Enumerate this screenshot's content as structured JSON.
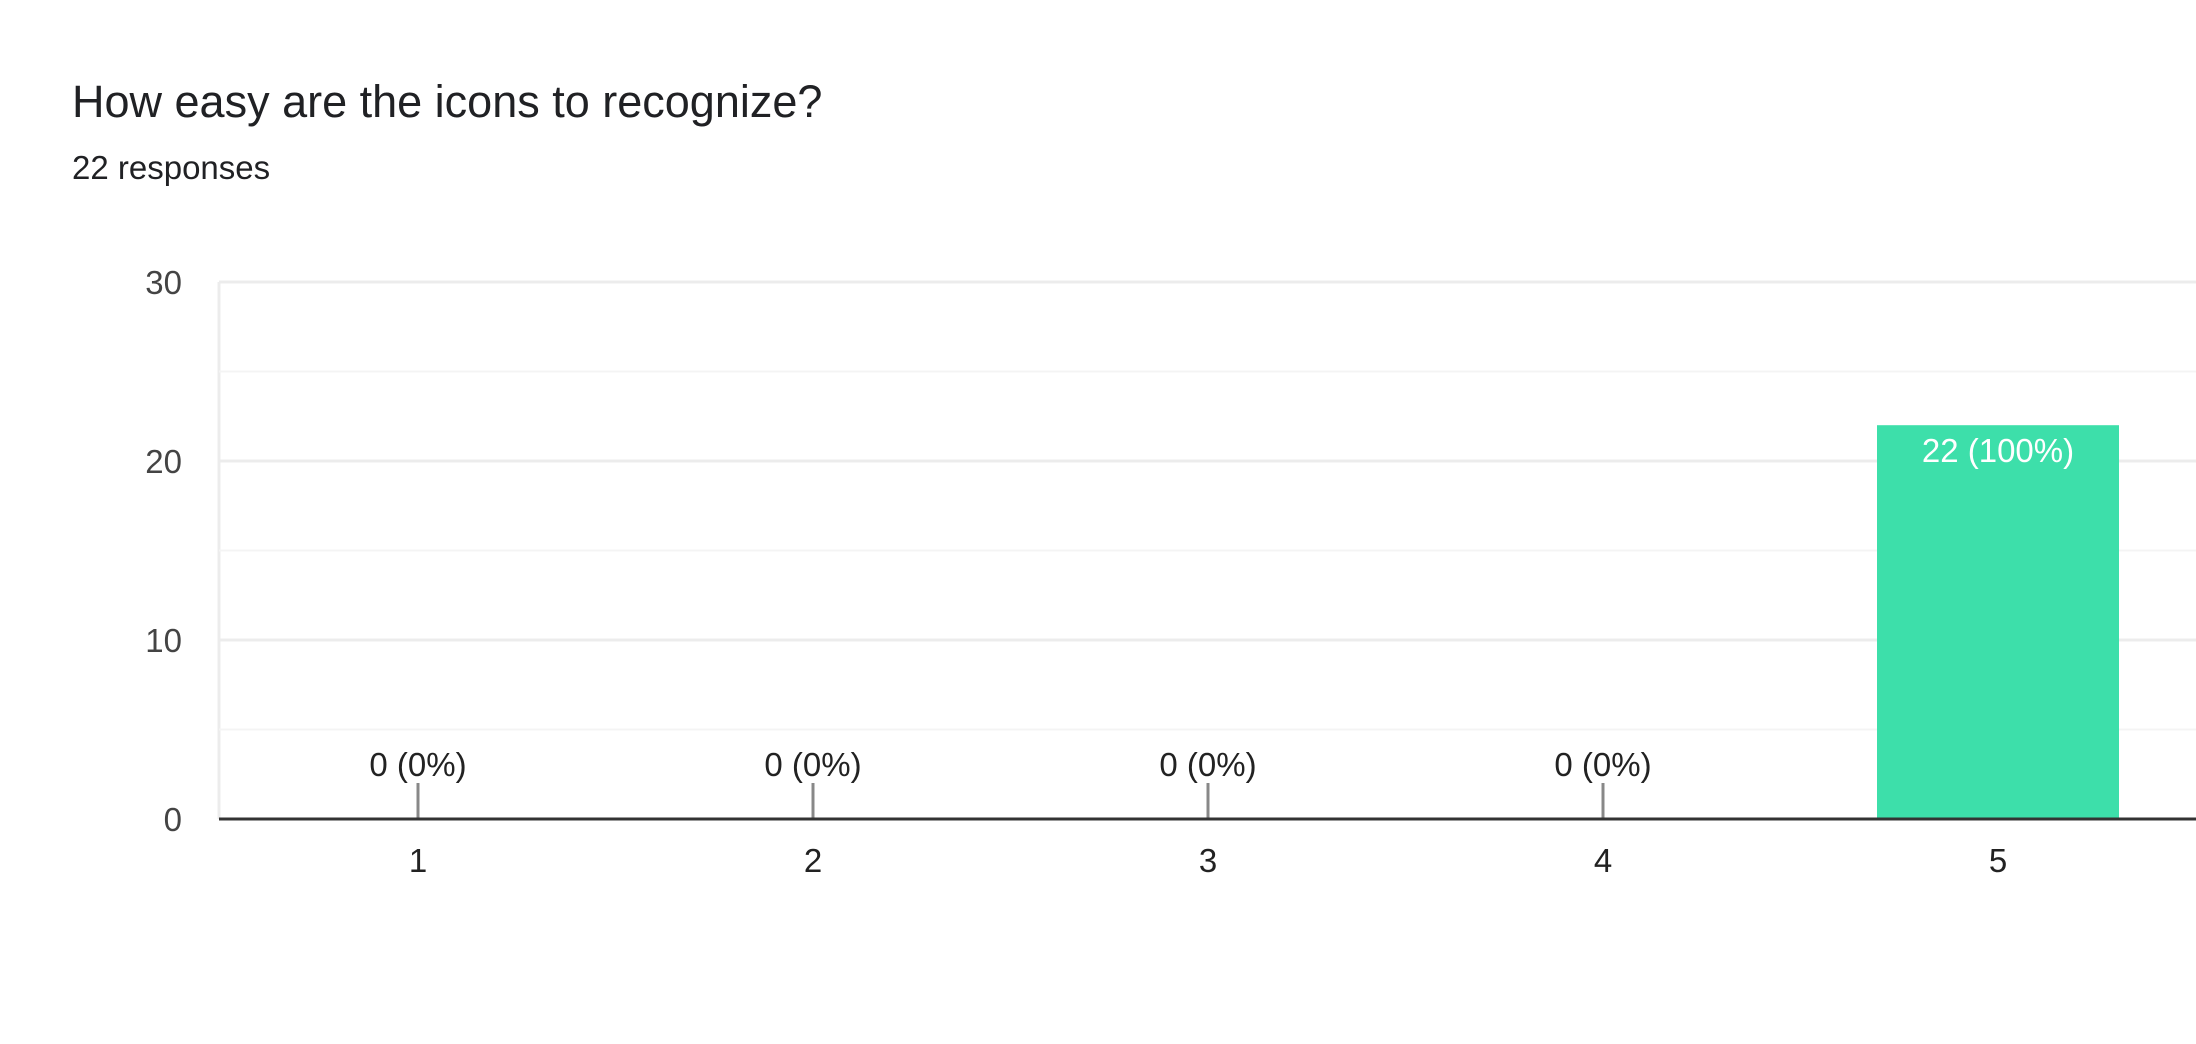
{
  "question": {
    "title": "How easy are the icons to recognize?",
    "responses": "22 responses"
  },
  "colors": {
    "bar": "#3ddfaa",
    "gridline": "#ececec",
    "minor_gridline": "#f4f4f4",
    "baseline": "#333333",
    "zero_tick": "#888888"
  },
  "chart_data": {
    "type": "bar",
    "categories": [
      "1",
      "2",
      "3",
      "4",
      "5"
    ],
    "values": [
      0,
      0,
      0,
      0,
      22
    ],
    "data_labels": [
      "0 (0%)",
      "0 (0%)",
      "0 (0%)",
      "0 (0%)",
      "22 (100%)"
    ],
    "ylim": [
      0,
      30
    ],
    "yticks": [
      0,
      10,
      20,
      30
    ],
    "grid": true
  }
}
